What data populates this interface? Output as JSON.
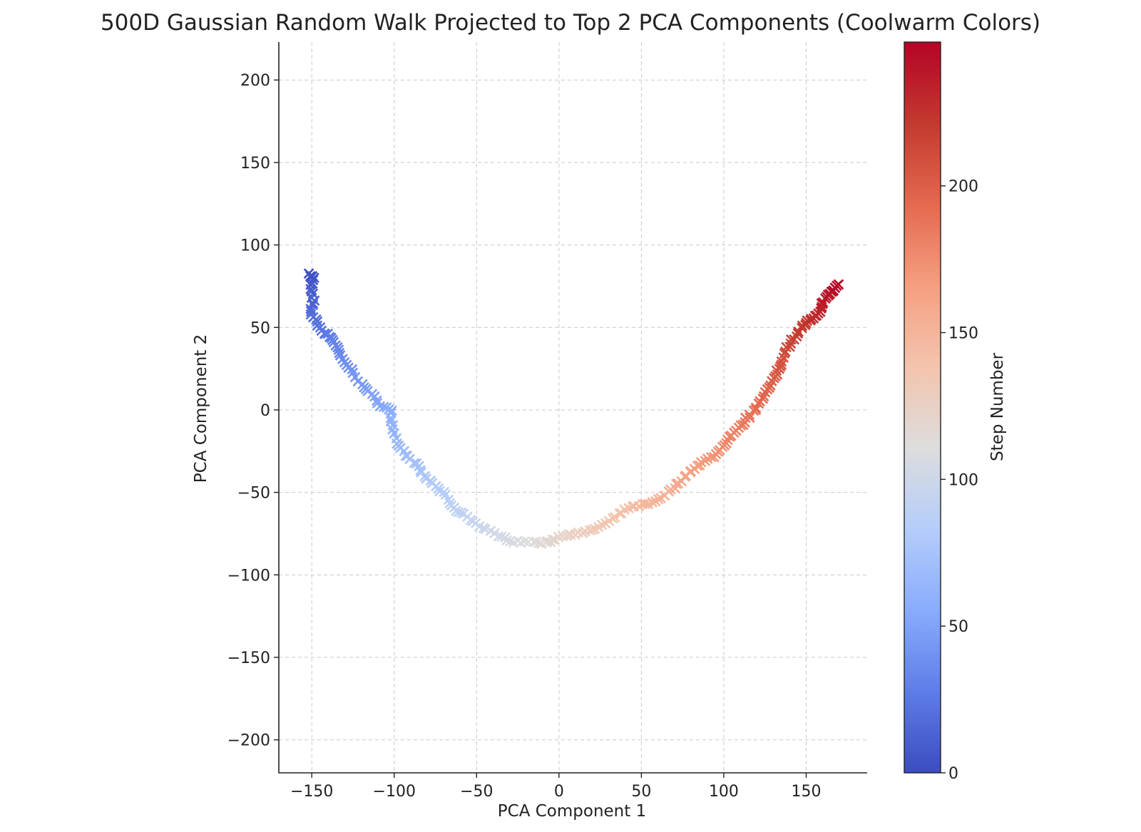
{
  "chart_data": {
    "type": "scatter",
    "title": "500D Gaussian Random Walk Projected to Top 2 PCA Components (Coolwarm Colors)",
    "xlabel": "PCA Component 1",
    "ylabel": "PCA Component 2",
    "xlim": [
      -170,
      187
    ],
    "ylim": [
      -220,
      223
    ],
    "xticks": [
      -150,
      -100,
      -50,
      0,
      50,
      100,
      150
    ],
    "yticks": [
      -200,
      -150,
      -100,
      -50,
      0,
      50,
      100,
      150,
      200
    ],
    "grid": true,
    "marker": "x",
    "colormap": "coolwarm",
    "colors": [
      "#3b4cc0",
      "#5e7de7",
      "#89acfd",
      "#b5cdfa",
      "#dcdddd",
      "#f4c4ad",
      "#f59f80",
      "#e4694f",
      "#c33a2f",
      "#b40426"
    ],
    "colorbar": {
      "label": "Step Number",
      "range": [
        0,
        249
      ],
      "ticks": [
        0,
        50,
        100,
        150,
        200
      ]
    },
    "path_keypoints": [
      {
        "step": 0,
        "x": -151,
        "y": 82
      },
      {
        "step": 4,
        "x": -149,
        "y": 80
      },
      {
        "step": 8,
        "x": -151,
        "y": 74
      },
      {
        "step": 12,
        "x": -149,
        "y": 66
      },
      {
        "step": 16,
        "x": -151,
        "y": 60
      },
      {
        "step": 20,
        "x": -147,
        "y": 53
      },
      {
        "step": 24,
        "x": -143,
        "y": 47
      },
      {
        "step": 28,
        "x": -138,
        "y": 44
      },
      {
        "step": 32,
        "x": -135,
        "y": 38
      },
      {
        "step": 36,
        "x": -132,
        "y": 31
      },
      {
        "step": 40,
        "x": -126,
        "y": 24
      },
      {
        "step": 44,
        "x": -120,
        "y": 16
      },
      {
        "step": 48,
        "x": -114,
        "y": 9
      },
      {
        "step": 52,
        "x": -108,
        "y": 3
      },
      {
        "step": 56,
        "x": -102,
        "y": 0
      },
      {
        "step": 60,
        "x": -101,
        "y": -10
      },
      {
        "step": 64,
        "x": -98,
        "y": -20
      },
      {
        "step": 68,
        "x": -93,
        "y": -27
      },
      {
        "step": 72,
        "x": -87,
        "y": -33
      },
      {
        "step": 76,
        "x": -82,
        "y": -40
      },
      {
        "step": 80,
        "x": -75,
        "y": -46
      },
      {
        "step": 84,
        "x": -69,
        "y": -52
      },
      {
        "step": 88,
        "x": -64,
        "y": -60
      },
      {
        "step": 92,
        "x": -58,
        "y": -63
      },
      {
        "step": 96,
        "x": -50,
        "y": -69
      },
      {
        "step": 100,
        "x": -42,
        "y": -74
      },
      {
        "step": 104,
        "x": -33,
        "y": -78
      },
      {
        "step": 108,
        "x": -25,
        "y": -80
      },
      {
        "step": 112,
        "x": -16,
        "y": -80
      },
      {
        "step": 116,
        "x": -8,
        "y": -81
      },
      {
        "step": 120,
        "x": -2,
        "y": -78
      },
      {
        "step": 124,
        "x": 6,
        "y": -75
      },
      {
        "step": 128,
        "x": 14,
        "y": -75
      },
      {
        "step": 132,
        "x": 22,
        "y": -72
      },
      {
        "step": 136,
        "x": 30,
        "y": -68
      },
      {
        "step": 140,
        "x": 38,
        "y": -62
      },
      {
        "step": 144,
        "x": 46,
        "y": -58
      },
      {
        "step": 148,
        "x": 54,
        "y": -57
      },
      {
        "step": 152,
        "x": 62,
        "y": -53
      },
      {
        "step": 156,
        "x": 70,
        "y": -47
      },
      {
        "step": 160,
        "x": 76,
        "y": -41
      },
      {
        "step": 164,
        "x": 82,
        "y": -35
      },
      {
        "step": 168,
        "x": 88,
        "y": -31
      },
      {
        "step": 172,
        "x": 96,
        "y": -27
      },
      {
        "step": 176,
        "x": 100,
        "y": -21
      },
      {
        "step": 180,
        "x": 104,
        "y": -15
      },
      {
        "step": 184,
        "x": 110,
        "y": -10
      },
      {
        "step": 188,
        "x": 115,
        "y": -4
      },
      {
        "step": 192,
        "x": 120,
        "y": 2
      },
      {
        "step": 196,
        "x": 125,
        "y": 9
      },
      {
        "step": 200,
        "x": 128,
        "y": 15
      },
      {
        "step": 204,
        "x": 132,
        "y": 22
      },
      {
        "step": 208,
        "x": 135,
        "y": 28
      },
      {
        "step": 212,
        "x": 138,
        "y": 36
      },
      {
        "step": 216,
        "x": 141,
        "y": 42
      },
      {
        "step": 220,
        "x": 146,
        "y": 48
      },
      {
        "step": 224,
        "x": 150,
        "y": 53
      },
      {
        "step": 228,
        "x": 154,
        "y": 55
      },
      {
        "step": 232,
        "x": 158,
        "y": 60
      },
      {
        "step": 236,
        "x": 160,
        "y": 65
      },
      {
        "step": 240,
        "x": 163,
        "y": 69
      },
      {
        "step": 244,
        "x": 166,
        "y": 72
      },
      {
        "step": 249,
        "x": 169,
        "y": 76
      }
    ]
  }
}
